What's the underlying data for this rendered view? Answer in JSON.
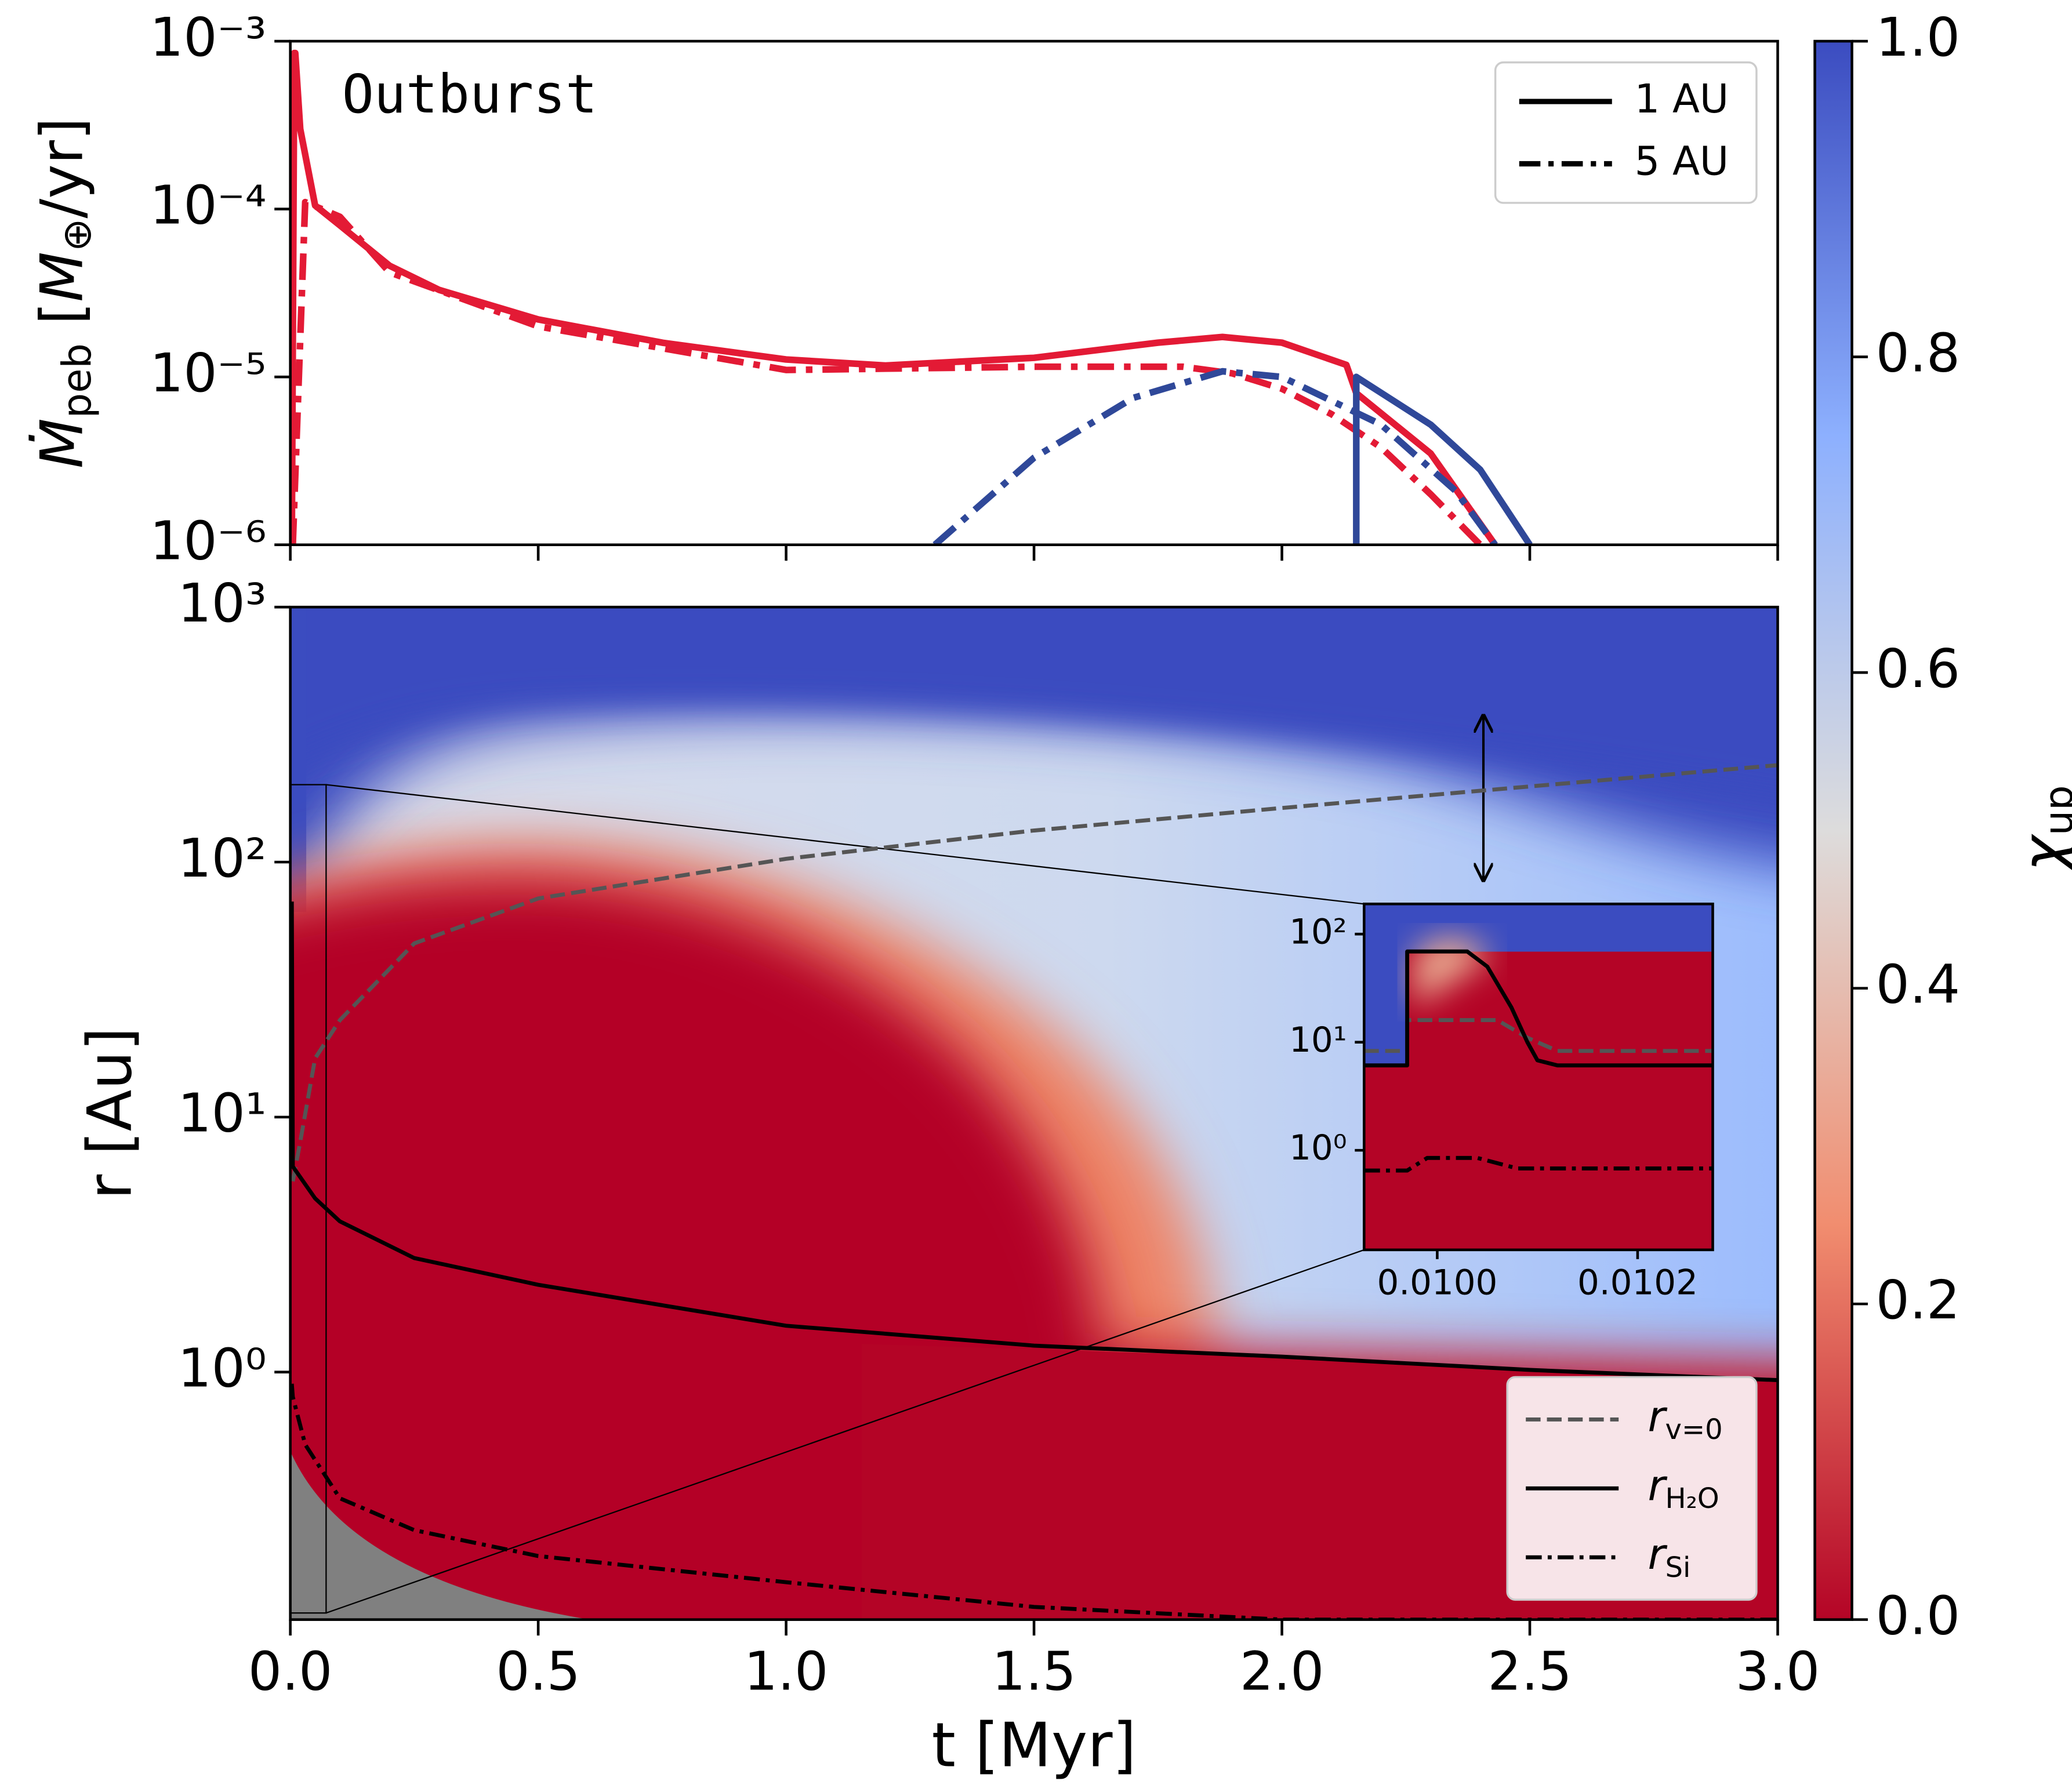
{
  "chart_data": [
    {
      "type": "line",
      "title": "Outburst",
      "ylabel_parts": [
        "Ṁ",
        "peb",
        " [",
        "M",
        "⊕",
        "/yr]"
      ],
      "xlim": [
        0,
        3
      ],
      "ylim": [
        1e-06,
        0.001
      ],
      "log_y": true,
      "yticks": [
        {
          "value": 1e-06,
          "label": "10⁻⁶"
        },
        {
          "value": 1e-05,
          "label": "10⁻⁵"
        },
        {
          "value": 0.0001,
          "label": "10⁻⁴"
        },
        {
          "value": 0.001,
          "label": "10⁻³"
        }
      ],
      "legend_loc": "upper right",
      "legend_color": "#000000",
      "legend_facecolor": "#ffffff",
      "series": [
        {
          "name": "1 AU",
          "color": "#e31a35",
          "dash": "solid",
          "x": [
            0.003,
            0.008,
            0.01,
            0.02,
            0.05,
            0.1,
            0.2,
            0.3,
            0.5,
            0.75,
            1.0,
            1.2,
            1.5,
            1.75,
            1.88,
            2.0,
            2.13,
            2.15,
            2.3,
            2.43
          ],
          "values": [
            1e-06,
            0.00085,
            0.00085,
            0.0003,
            0.000105,
            8e-05,
            4.6e-05,
            3.3e-05,
            2.2e-05,
            1.6e-05,
            1.27e-05,
            1.17e-05,
            1.3e-05,
            1.6e-05,
            1.73e-05,
            1.6e-05,
            1.18e-05,
            8e-06,
            3.5e-06,
            1e-06
          ]
        },
        {
          "name": "5 AU",
          "color": "#e31a35",
          "dash": "dashdot",
          "x": [
            0.005,
            0.03,
            0.1,
            0.2,
            0.5,
            1.0,
            1.5,
            1.8,
            1.9,
            2.0,
            2.1,
            2.2,
            2.3,
            2.4
          ],
          "values": [
            1e-06,
            0.00011,
            9e-05,
            4.2e-05,
            2e-05,
            1.1e-05,
            1.15e-05,
            1.15e-05,
            1.05e-05,
            8.5e-06,
            6e-06,
            3.8e-06,
            2e-06,
            1e-06
          ]
        },
        {
          "name": "1 AU",
          "color": "#2f4899",
          "dash": "solid",
          "x": [
            2.15,
            2.15,
            2.3,
            2.4,
            2.5
          ],
          "values": [
            1e-06,
            1e-05,
            5.2e-06,
            2.8e-06,
            1e-06
          ]
        },
        {
          "name": "5 AU",
          "color": "#2f4899",
          "dash": "dashdot",
          "x": [
            1.3,
            1.5,
            1.7,
            1.88,
            2.0,
            2.2,
            2.35,
            2.43
          ],
          "values": [
            1e-06,
            3.3e-06,
            7.5e-06,
            1.08e-05,
            1e-05,
            5.2e-06,
            2.1e-06,
            1e-06
          ]
        }
      ]
    },
    {
      "type": "line",
      "xlabel": "t [Myr]",
      "ylabel": "r [Au]",
      "xlim": [
        0,
        3
      ],
      "ylim": [
        0.107,
        1000
      ],
      "log_y": true,
      "xticks": [
        {
          "value": 0,
          "label": "0.0"
        },
        {
          "value": 0.5,
          "label": "0.5"
        },
        {
          "value": 1,
          "label": "1.0"
        },
        {
          "value": 1.5,
          "label": "1.5"
        },
        {
          "value": 2,
          "label": "2.0"
        },
        {
          "value": 2.5,
          "label": "2.5"
        },
        {
          "value": 3,
          "label": "3.0"
        }
      ],
      "yticks": [
        {
          "value": 1,
          "label": "10⁰"
        },
        {
          "value": 10,
          "label": "10¹"
        },
        {
          "value": 100,
          "label": "10²"
        },
        {
          "value": 1000,
          "label": "10³"
        }
      ],
      "legend_loc": "lower right",
      "legend_facecolor": "#f7e4e8",
      "series": [
        {
          "name": "r",
          "subscript": "v=0",
          "color": "#555555",
          "dash": "dashed",
          "x": [
            0.005,
            0.02,
            0.05,
            0.1,
            0.25,
            0.5,
            1.0,
            1.5,
            2.0,
            2.5,
            3.0
          ],
          "values": [
            5.6,
            8,
            17,
            24,
            48,
            72,
            103,
            133,
            163,
            198,
            240
          ]
        },
        {
          "name": "r",
          "subscript": "H₂O",
          "color": "#000000",
          "dash": "solid",
          "x": [
            0.003,
            0.005,
            0.05,
            0.1,
            0.25,
            0.5,
            1.0,
            1.5,
            2.0,
            2.5,
            3.0
          ],
          "values": [
            70,
            6.4,
            4.8,
            3.9,
            2.8,
            2.2,
            1.52,
            1.27,
            1.15,
            1.02,
            0.93
          ]
        },
        {
          "name": "r",
          "subscript": "Si",
          "color": "#000000",
          "dash": "dashdot",
          "x": [
            0.003,
            0.005,
            0.03,
            0.1,
            0.25,
            0.5,
            1.0,
            1.5,
            2.0,
            3.0
          ],
          "values": [
            0.9,
            0.8,
            0.52,
            0.32,
            0.24,
            0.19,
            0.15,
            0.12,
            0.107,
            0.107
          ]
        }
      ],
      "inset": {
        "xlim": [
          0.009927,
          0.010275
        ],
        "ylim": [
          0.12,
          190
        ],
        "log_y": true,
        "xticks": [
          {
            "value": 0.01,
            "label": "0.0100"
          },
          {
            "value": 0.0102,
            "label": "0.0102"
          }
        ],
        "yticks": [
          {
            "value": 1,
            "label": "10⁰"
          },
          {
            "value": 10,
            "label": "10¹"
          },
          {
            "value": 100,
            "label": "10²"
          }
        ],
        "series": [
          {
            "color": "#555555",
            "dash": "dashed",
            "x": [
              0.009927,
              0.00997,
              0.00997,
              0.01006,
              0.01009,
              0.01012,
              0.010275
            ],
            "values": [
              8.3,
              8.3,
              16,
              16,
              11,
              8.3,
              8.3
            ]
          },
          {
            "color": "#000000",
            "dash": "solid",
            "x": [
              0.009927,
              0.00997,
              0.00997,
              0.01003,
              0.01005,
              0.010074,
              0.01009,
              0.0101,
              0.01012,
              0.010275
            ],
            "values": [
              6.1,
              6.1,
              69,
              69,
              50,
              21,
              10,
              6.8,
              6.1,
              6.1
            ]
          },
          {
            "color": "#000000",
            "dash": "dashdot",
            "x": [
              0.009927,
              0.00997,
              0.00999,
              0.01004,
              0.01008,
              0.010275
            ],
            "values": [
              0.65,
              0.65,
              0.85,
              0.85,
              0.68,
              0.68
            ]
          }
        ]
      }
    },
    {
      "type": "colorbar",
      "label": "χ",
      "subscript": "up",
      "lim": [
        0,
        1
      ],
      "colors": [
        "#b40426",
        "#f18d6f",
        "#dddcdc",
        "#8db0fe",
        "#3b4cc0"
      ],
      "ticks": [
        {
          "value": 0,
          "label": "0.0"
        },
        {
          "value": 0.2,
          "label": "0.2"
        },
        {
          "value": 0.4,
          "label": "0.4"
        },
        {
          "value": 0.6,
          "label": "0.6"
        },
        {
          "value": 0.8,
          "label": "0.8"
        },
        {
          "value": 1,
          "label": "1.0"
        }
      ]
    }
  ]
}
